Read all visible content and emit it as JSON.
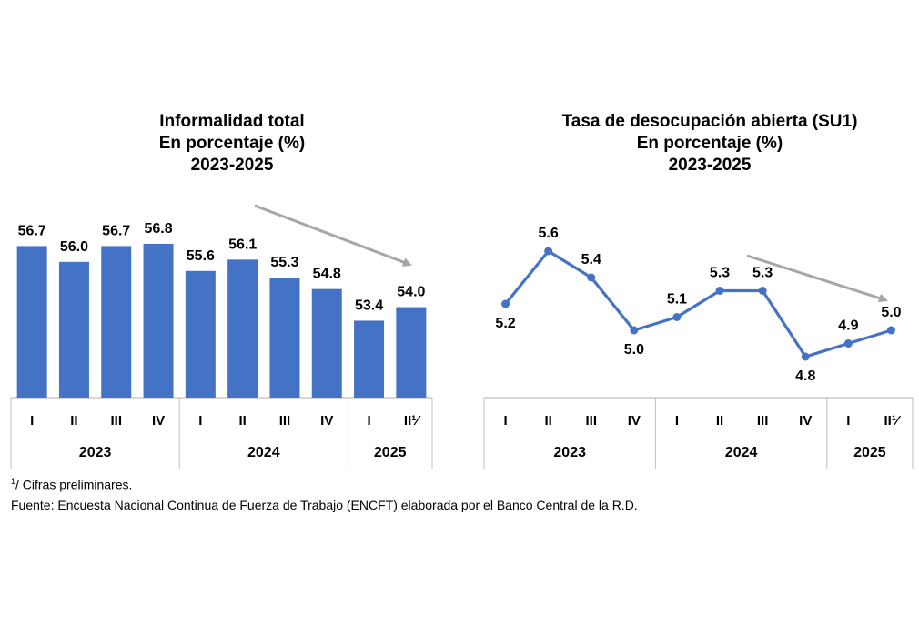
{
  "charts": {
    "left": {
      "title_lines": [
        "Informalidad total",
        "En porcentaje (%)",
        "2023-2025"
      ]
    },
    "right": {
      "title_lines": [
        "Tasa de desocupación abierta (SU1)",
        "En porcentaje (%)",
        "2023-2025"
      ]
    }
  },
  "chart_data": [
    {
      "type": "bar",
      "title": "Informalidad total",
      "subtitle": "En porcentaje (%)",
      "categories": [
        "I",
        "II",
        "III",
        "IV",
        "I",
        "II",
        "III",
        "IV",
        "I",
        "II¹⁄"
      ],
      "groups": [
        "2023",
        "2024",
        "2025"
      ],
      "group_sizes": [
        4,
        4,
        2
      ],
      "values": [
        56.7,
        56.0,
        56.7,
        56.8,
        55.6,
        56.1,
        55.3,
        54.8,
        53.4,
        54.0
      ],
      "value_labels": [
        "56.7",
        "56.0",
        "56.7",
        "56.8",
        "55.6",
        "56.1",
        "55.3",
        "54.8",
        "53.4",
        "54.0"
      ],
      "ylim": [
        50,
        57.2
      ],
      "color": "#4472C4",
      "annotation": "downward trend arrow (gray)"
    },
    {
      "type": "line",
      "title": "Tasa de desocupación abierta (SU1)",
      "subtitle": "En porcentaje (%)",
      "categories": [
        "I",
        "II",
        "III",
        "IV",
        "I",
        "II",
        "III",
        "IV",
        "I",
        "II¹⁄"
      ],
      "groups": [
        "2023",
        "2024",
        "2025"
      ],
      "group_sizes": [
        4,
        4,
        2
      ],
      "values": [
        5.2,
        5.6,
        5.4,
        5.0,
        5.1,
        5.3,
        5.3,
        4.8,
        4.9,
        5.0
      ],
      "value_labels": [
        "5.2",
        "5.6",
        "5.4",
        "5.0",
        "5.1",
        "5.3",
        "5.3",
        "4.8",
        "4.9",
        "5.0"
      ],
      "label_positions": [
        "below",
        "above",
        "above",
        "below",
        "above",
        "above",
        "above",
        "below",
        "above",
        "above"
      ],
      "ylim": [
        4.6,
        5.75
      ],
      "color": "#4472C4",
      "annotation": "downward trend arrow (gray)"
    }
  ],
  "footnotes": {
    "preliminary": "/ Cifras preliminares.",
    "preliminary_mark": "1",
    "source": "Fuente: Encuesta Nacional Continua de Fuerza de Trabajo (ENCFT) elaborada por el Banco Central de la R.D."
  },
  "colors": {
    "series": "#4472C4",
    "arrow": "#A6A6A6",
    "axis": "#BFBFBF"
  }
}
